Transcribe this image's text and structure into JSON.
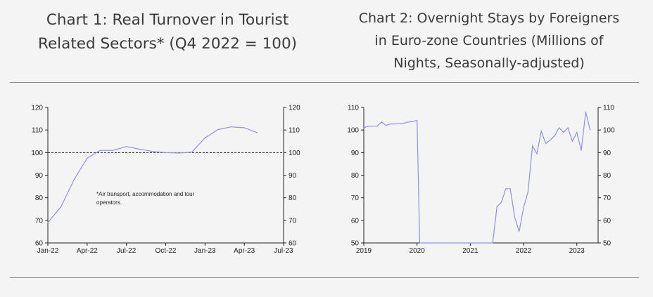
{
  "colors": {
    "line": "#8f90e6",
    "axis": "#222222",
    "text": "#222222",
    "background": "#f4f4f5",
    "dashed": "#222222"
  },
  "chart_data": [
    {
      "type": "line",
      "title": "Chart 1: Real Turnover in Tourist Related Sectors* (Q4 2022 = 100)",
      "title_lines": [
        "Chart 1: Real Turnover in Tourist",
        "Related Sectors* (Q4 2022 = 100)"
      ],
      "annotation_lines": [
        "*Air transport, accommodation and tour",
        "operators."
      ],
      "xlabel": "",
      "ylabel": "",
      "x_ticks": [
        {
          "label": "Jan-22",
          "month": 0
        },
        {
          "label": "Apr-22",
          "month": 3
        },
        {
          "label": "Jul-22",
          "month": 6
        },
        {
          "label": "Oct-22",
          "month": 9
        },
        {
          "label": "Jan-23",
          "month": 12
        },
        {
          "label": "Apr-23",
          "month": 15
        },
        {
          "label": "Jul-23",
          "month": 18
        }
      ],
      "xlim": [
        0,
        18
      ],
      "ylim": [
        60,
        120
      ],
      "y_ticks": [
        60,
        70,
        80,
        90,
        100,
        110,
        120
      ],
      "y_tick_labels": [
        "60",
        "70",
        "80",
        "90",
        "100",
        "110",
        "120"
      ],
      "reference_line": 100,
      "series": [
        {
          "x": [
            "Jan-22",
            "Feb-22",
            "Mar-22",
            "Apr-22",
            "May-22",
            "Jun-22",
            "Jul-22",
            "Aug-22",
            "Sep-22",
            "Oct-22",
            "Nov-22",
            "Dec-22",
            "Jan-23",
            "Feb-23",
            "Mar-23",
            "Apr-23",
            "May-23"
          ],
          "months": [
            0,
            1,
            2,
            3,
            4,
            5,
            6,
            7,
            8,
            9,
            10,
            11,
            12,
            13,
            14,
            15,
            16
          ],
          "values": [
            69,
            76,
            88,
            97.5,
            101,
            101,
            102.7,
            101.5,
            100.5,
            100,
            99.8,
            100.2,
            106.5,
            110.2,
            111.4,
            111,
            108.8
          ]
        }
      ],
      "grid": false,
      "legend": "none"
    },
    {
      "type": "line",
      "title": "Chart 2: Overnight Stays by Foreigners in Euro-zone Countries (Millions of Nights, Seasonally-adjusted)",
      "title_lines": [
        "Chart 2: Overnight Stays by Foreigners",
        "in Euro-zone Countries (Millions of",
        "Nights, Seasonally-adjusted)"
      ],
      "xlabel": "",
      "ylabel": "",
      "x_tick_labels": [
        "2019",
        "2020",
        "2021",
        "2022",
        "2023"
      ],
      "x_tick_positions": [
        2019,
        2020,
        2021,
        2022,
        2023
      ],
      "xlim": [
        2019,
        2023.4
      ],
      "ylim": [
        50,
        110
      ],
      "y_ticks": [
        50,
        60,
        70,
        80,
        90,
        100,
        110
      ],
      "y_tick_labels": [
        "50",
        "60",
        "70",
        "80",
        "90",
        "100",
        "110"
      ],
      "series": [
        {
          "x": [
            2019.0,
            2019.083,
            2019.167,
            2019.25,
            2019.333,
            2019.417,
            2019.5,
            2019.583,
            2019.667,
            2019.75,
            2019.833,
            2019.917,
            2020.0,
            2020.05,
            2021.42,
            2021.5,
            2021.583,
            2021.667,
            2021.75,
            2021.833,
            2021.917,
            2022.0,
            2022.083,
            2022.167,
            2022.25,
            2022.333,
            2022.417,
            2022.5,
            2022.583,
            2022.667,
            2022.75,
            2022.833,
            2022.917,
            2023.0,
            2023.083,
            2023.167,
            2023.25
          ],
          "values": [
            101.0,
            101.7,
            101.7,
            101.7,
            103.5,
            102.0,
            102.7,
            102.7,
            102.8,
            103.0,
            103.5,
            103.8,
            104.2,
            50,
            50,
            66.0,
            68.0,
            74.0,
            74.0,
            61.5,
            55.0,
            65.5,
            72.5,
            93.0,
            89.5,
            99.5,
            94.0,
            95.5,
            97.5,
            101.0,
            99.0,
            101.0,
            95.0,
            99.0,
            91.0,
            108.0,
            100.0
          ]
        }
      ],
      "grid": false,
      "legend": "none"
    }
  ]
}
